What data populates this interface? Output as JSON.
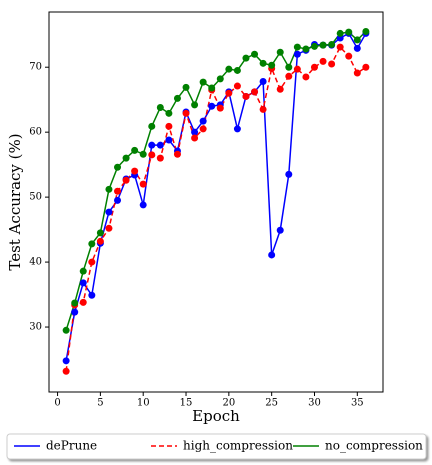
{
  "chart_data": {
    "type": "line",
    "xlabel": "Epoch",
    "ylabel": "Test Accuracy (%)",
    "x": [
      1,
      2,
      3,
      4,
      5,
      6,
      7,
      8,
      9,
      10,
      11,
      12,
      13,
      14,
      15,
      16,
      17,
      18,
      19,
      20,
      21,
      22,
      23,
      24,
      25,
      26,
      27,
      28,
      29,
      30,
      31,
      32,
      33,
      34,
      35,
      36
    ],
    "series": [
      {
        "name": "dePrune",
        "color": "#0000ff",
        "linestyle": "solid",
        "values": [
          24.8,
          32.3,
          36.8,
          34.9,
          42.9,
          47.7,
          49.5,
          52.8,
          53.4,
          48.8,
          58.0,
          58.0,
          58.8,
          57.1,
          63.1,
          60.0,
          61.7,
          64.0,
          64.2,
          66.2,
          60.5,
          65.5,
          66.2,
          67.8,
          41.1,
          44.9,
          53.5,
          72.0,
          72.6,
          73.5,
          73.4,
          73.4,
          74.5,
          75.2,
          72.9,
          75.2
        ]
      },
      {
        "name": "high_compression",
        "color": "#ff0000",
        "linestyle": "dashed",
        "values": [
          23.2,
          33.4,
          33.8,
          40.0,
          43.2,
          45.2,
          50.9,
          52.6,
          54.0,
          52.0,
          56.5,
          56.0,
          60.9,
          56.6,
          62.9,
          59.1,
          60.5,
          66.5,
          63.7,
          66.0,
          67.1,
          65.5,
          66.2,
          63.5,
          69.8,
          66.6,
          68.6,
          69.7,
          68.5,
          70.0,
          70.9,
          70.5,
          73.1,
          71.7,
          69.1,
          70.0
        ]
      },
      {
        "name": "no_compression",
        "color": "#008000",
        "linestyle": "solid",
        "values": [
          29.5,
          33.7,
          38.6,
          42.8,
          44.5,
          51.2,
          54.6,
          56.0,
          57.2,
          56.6,
          60.9,
          63.8,
          62.9,
          65.2,
          66.9,
          64.2,
          67.7,
          66.8,
          68.2,
          69.7,
          69.5,
          71.4,
          72.0,
          70.6,
          70.3,
          72.3,
          70.0,
          73.1,
          72.8,
          73.2,
          73.4,
          73.5,
          75.2,
          75.4,
          74.2,
          75.5
        ]
      }
    ],
    "xlim": [
      -1,
      38
    ],
    "xticks": [
      0,
      5,
      10,
      15,
      20,
      25,
      30,
      35
    ],
    "ylim": [
      20,
      78.5
    ],
    "yticks": [
      30,
      40,
      50,
      60,
      70
    ],
    "grid": false,
    "legend": "bottom"
  }
}
